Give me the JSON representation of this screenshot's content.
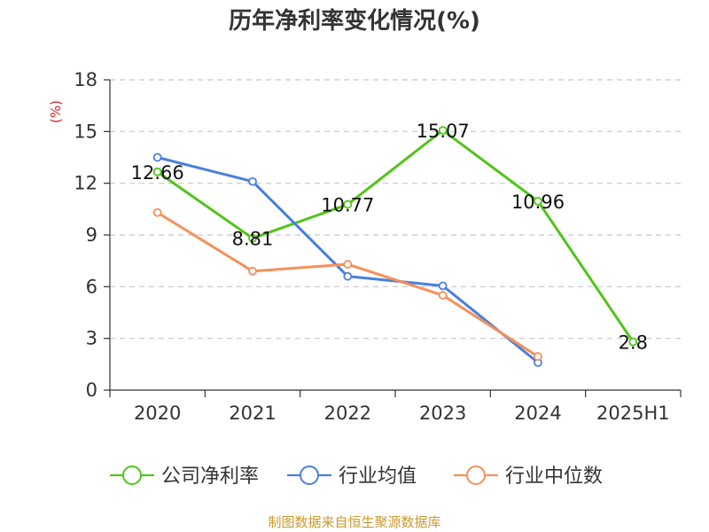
{
  "chart_data": {
    "type": "line",
    "title": "历年净利率变化情况(%)",
    "y_unit": "(%)",
    "categories": [
      "2020",
      "2021",
      "2022",
      "2023",
      "2024",
      "2025H1"
    ],
    "ylim": [
      0,
      18
    ],
    "yticks": [
      0,
      3,
      6,
      9,
      12,
      15,
      18
    ],
    "grid": true,
    "legend_position": "bottom",
    "series": [
      {
        "name": "公司净利率",
        "color": "#52c41a",
        "values": [
          12.66,
          8.81,
          10.77,
          15.07,
          10.96,
          2.8
        ],
        "labels": [
          "12.66",
          "8.81",
          "10.77",
          "15.07",
          "10.96",
          "2.8"
        ]
      },
      {
        "name": "行业均值",
        "color": "#4a7fdc",
        "values": [
          13.5,
          12.1,
          6.6,
          6.05,
          1.6,
          null
        ]
      },
      {
        "name": "行业中位数",
        "color": "#f5905a",
        "values": [
          10.3,
          6.9,
          7.3,
          5.5,
          1.95,
          null
        ]
      }
    ]
  },
  "source_text": "制图数据来自恒生聚源数据库"
}
